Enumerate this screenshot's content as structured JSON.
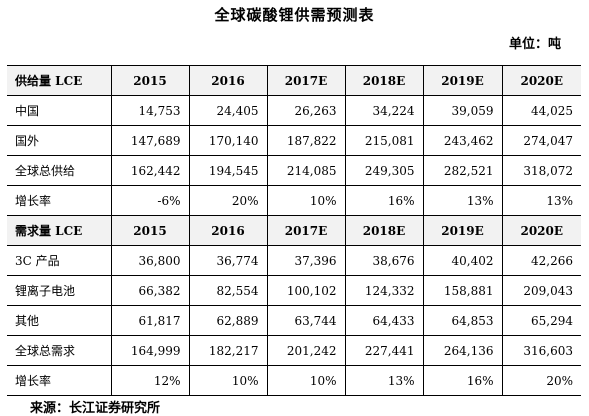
{
  "title": "全球碳酸锂供需预测表",
  "unit": "单位：吨",
  "supply": {
    "header": [
      "供给量 LCE",
      "2015",
      "2016",
      "2017E",
      "2018E",
      "2019E",
      "2020E"
    ],
    "rows": [
      {
        "label": "中国",
        "values": [
          "14,753",
          "24,405",
          "26,263",
          "34,224",
          "39,059",
          "44,025"
        ]
      },
      {
        "label": "国外",
        "values": [
          "147,689",
          "170,140",
          "187,822",
          "215,081",
          "243,462",
          "274,047"
        ]
      },
      {
        "label": "全球总供给",
        "values": [
          "162,442",
          "194,545",
          "214,085",
          "249,305",
          "282,521",
          "318,072"
        ]
      },
      {
        "label": "增长率",
        "values": [
          "-6%",
          "20%",
          "10%",
          "16%",
          "13%",
          "13%"
        ]
      }
    ]
  },
  "demand": {
    "header": [
      "需求量 LCE",
      "2015",
      "2016",
      "2017E",
      "2018E",
      "2019E",
      "2020E"
    ],
    "rows": [
      {
        "label": "3C 产品",
        "values": [
          "36,800",
          "36,774",
          "37,396",
          "38,676",
          "40,402",
          "42,266"
        ]
      },
      {
        "label": "锂离子电池",
        "values": [
          "66,382",
          "82,554",
          "100,102",
          "124,332",
          "158,881",
          "209,043"
        ]
      },
      {
        "label": "其他",
        "values": [
          "61,817",
          "62,889",
          "63,744",
          "64,433",
          "64,853",
          "65,294"
        ]
      },
      {
        "label": "全球总需求",
        "values": [
          "164,999",
          "182,217",
          "201,242",
          "227,441",
          "264,136",
          "316,603"
        ]
      },
      {
        "label": "增长率",
        "values": [
          "12%",
          "10%",
          "10%",
          "13%",
          "16%",
          "20%"
        ]
      }
    ]
  },
  "source": "来源：长江证券研究所"
}
